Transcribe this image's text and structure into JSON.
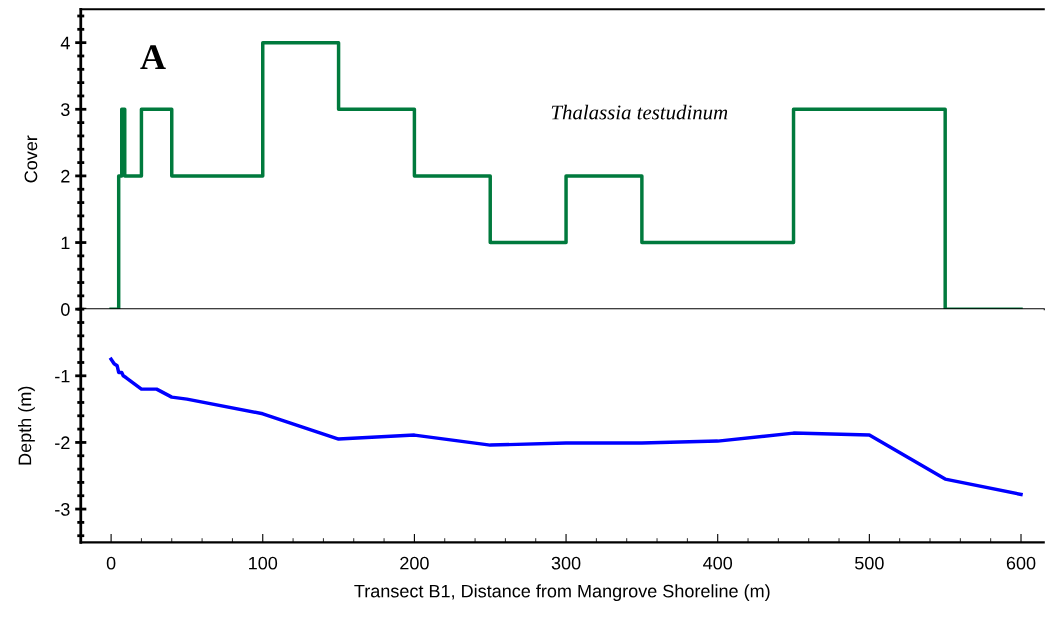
{
  "chart_data": [
    {
      "type": "step",
      "ylabel": "Cover",
      "annotations": [
        "A"
      ],
      "xlim": [
        -20,
        615
      ],
      "ylim": [
        0,
        4.5
      ],
      "yticks": [
        0,
        1,
        2,
        3,
        4
      ],
      "tick_labels": "y",
      "legend": false,
      "grid": false,
      "x": [
        0,
        5,
        7,
        9,
        20,
        40,
        100,
        150,
        200,
        250,
        300,
        350,
        450,
        550,
        600
      ],
      "series": [
        {
          "name": "Thalassia testudinum",
          "color": "#007a3d",
          "values": [
            0,
            2,
            3,
            2,
            3,
            2,
            4,
            3,
            2,
            1,
            2,
            1,
            3,
            0,
            0
          ]
        }
      ]
    },
    {
      "type": "line",
      "xlabel": "Transect B1, Distance from Mangrove Shoreline (m)",
      "ylabel": "Depth (m)",
      "xlim": [
        -20,
        615
      ],
      "xticks": [
        0,
        100,
        200,
        300,
        400,
        500,
        600
      ],
      "ylim": [
        -3.5,
        0
      ],
      "yticks": [
        -3,
        -2,
        -1
      ],
      "legend": false,
      "grid": false,
      "x": [
        0,
        2,
        4,
        5,
        7,
        8,
        10,
        20,
        30,
        40,
        50,
        100,
        150,
        200,
        250,
        300,
        350,
        400,
        450,
        500,
        550,
        600
      ],
      "series": [
        {
          "color": "#0000ff",
          "values": [
            -0.75,
            -0.82,
            -0.85,
            -0.95,
            -0.95,
            -1.0,
            -1.03,
            -1.2,
            -1.2,
            -1.32,
            -1.35,
            -1.57,
            -1.95,
            -1.89,
            -2.04,
            -2.01,
            -2.01,
            -1.98,
            -1.86,
            -1.89,
            -2.55,
            -2.78
          ]
        }
      ]
    }
  ]
}
